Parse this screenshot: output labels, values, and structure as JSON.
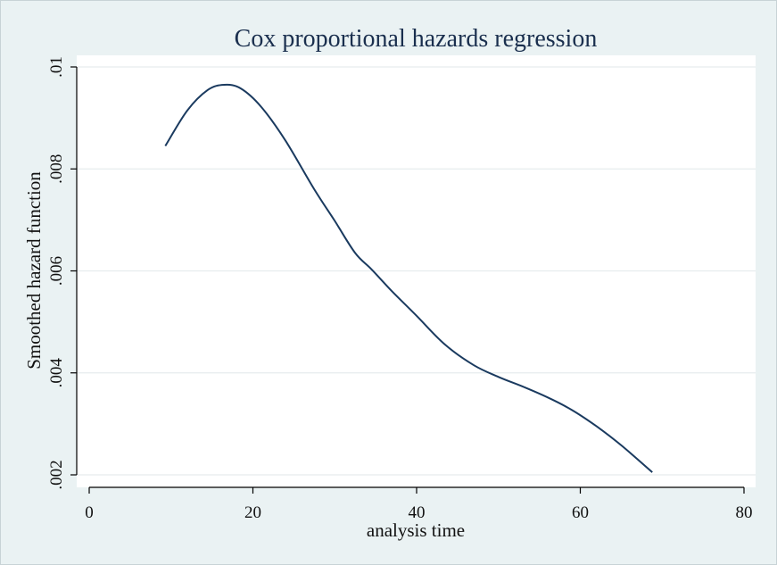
{
  "chart_data": {
    "type": "line",
    "title": "Cox proportional hazards regression",
    "xlabel": "analysis time",
    "ylabel": "Smoothed hazard function",
    "xlim": [
      0,
      80
    ],
    "ylim": [
      0.002,
      0.0101
    ],
    "xticks": [
      0,
      20,
      40,
      60,
      80
    ],
    "xtick_labels": [
      "0",
      "20",
      "40",
      "60",
      "80"
    ],
    "yticks": [
      0.002,
      0.004,
      0.006,
      0.008,
      0.01
    ],
    "ytick_labels": [
      ".002",
      ".004",
      ".006",
      ".008",
      ".01"
    ],
    "grid": true,
    "colors": {
      "background": "#eaf2f3",
      "plot_area": "#ffffff",
      "line": "#1a3a5f",
      "grid": "#e6ecee",
      "title": "#1a2f4e"
    },
    "series": [
      {
        "x": [
          9.3,
          12,
          14.5,
          16.5,
          18.5,
          21,
          24,
          27.5,
          30,
          32.5,
          34.5,
          37,
          40,
          43.5,
          47,
          50,
          53,
          56,
          59,
          62,
          65,
          68.8
        ],
        "y": [
          0.00845,
          0.00915,
          0.00955,
          0.00965,
          0.00958,
          0.00922,
          0.00855,
          0.0076,
          0.00698,
          0.00635,
          0.00603,
          0.0056,
          0.00512,
          0.00455,
          0.00415,
          0.00392,
          0.00373,
          0.00352,
          0.00327,
          0.00295,
          0.00258,
          0.00205
        ]
      }
    ]
  }
}
